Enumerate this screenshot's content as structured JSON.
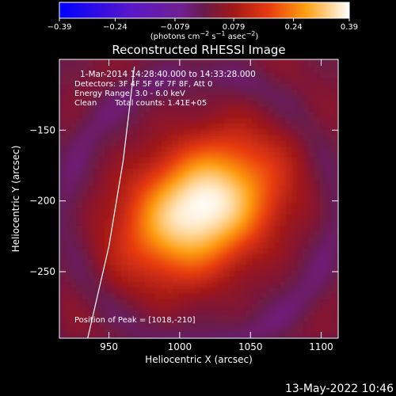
{
  "chart_data": {
    "type": "heatmap",
    "title": "Reconstructed RHESSI Image",
    "xlabel": "Heliocentric X (arcsec)",
    "ylabel": "Heliocentric Y (arcsec)",
    "xlim": [
      915,
      1112
    ],
    "ylim": [
      -297,
      -100
    ],
    "x_ticks": [
      950,
      1000,
      1050,
      1100
    ],
    "y_ticks": [
      -150,
      -200,
      -250
    ],
    "x_tick_labels": [
      "950",
      "1000",
      "1050",
      "1100"
    ],
    "y_tick_labels": [
      "−150",
      "−200",
      "−250"
    ],
    "colorbar": {
      "min": -0.39,
      "max": 0.39,
      "tick_values": [
        -0.39,
        -0.24,
        -0.079,
        0.079,
        0.24,
        0.39
      ],
      "tick_labels": [
        "−0.39",
        "−0.24",
        "−0.079",
        "0.079",
        "0.24",
        "0.39"
      ],
      "unit_prefix": "(photons cm",
      "unit_exp1": "−2",
      "unit_mid": " s",
      "unit_exp2": "−1",
      "unit_mid2": " asec",
      "unit_exp3": "−2",
      "unit_suffix": ")"
    },
    "info": {
      "time": "1-Mar-2014 14:28:40.000 to 14:33:28.000",
      "detectors": "Detectors: 3F 4F 5F 6F 7F 8F, Att 0",
      "energy": "Energy Range: 3.0 - 6.0 keV",
      "method": "Clean",
      "counts": "Total counts: 1.41E+05"
    },
    "peak": {
      "label": "Position of Peak = [1018,-210]",
      "x": 1018,
      "y": -210
    },
    "source": {
      "center_x": 1015,
      "center_y": -205,
      "peak_value": 0.39
    },
    "limb_curve": [
      [
        935,
        -297
      ],
      [
        950,
        -232
      ],
      [
        960,
        -172
      ],
      [
        968,
        -105
      ]
    ],
    "limb_color": "#ffffff",
    "footer_date": "13-May-2022 10:46"
  }
}
